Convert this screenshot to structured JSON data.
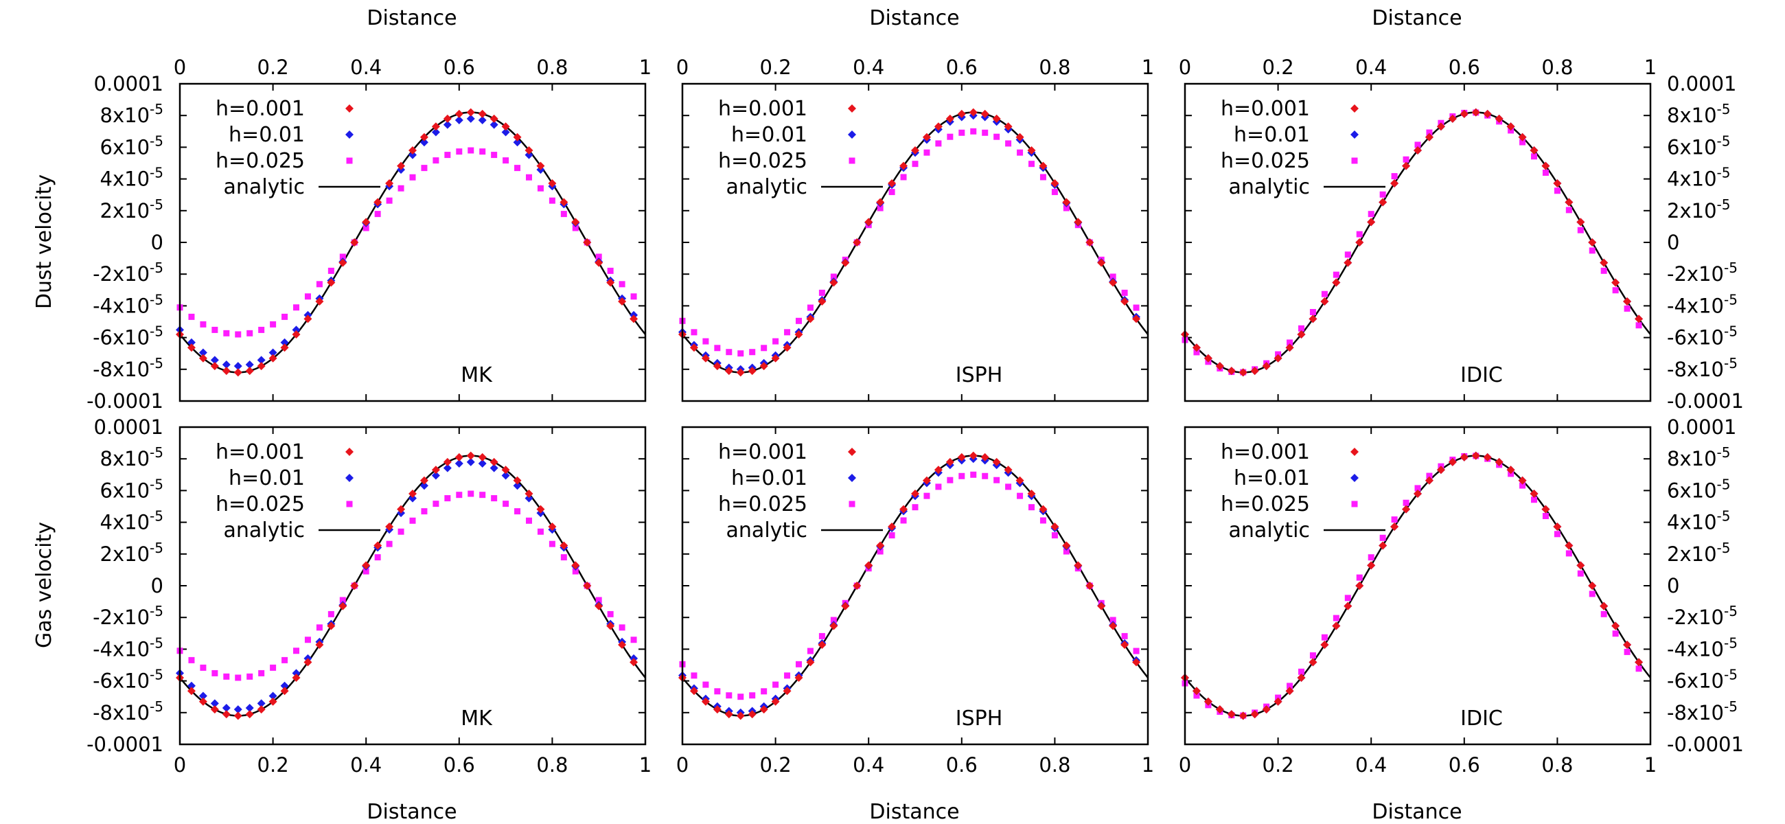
{
  "figure": {
    "top_axis_label": "Distance",
    "bottom_axis_label": "Distance",
    "row_labels": [
      "Dust velocity",
      "Gas velocity"
    ]
  },
  "legend": {
    "entries": [
      {
        "label": "h=0.001",
        "color": "#e8141c",
        "marker": "diamond"
      },
      {
        "label": "h=0.01",
        "color": "#1c1ce8",
        "marker": "diamond"
      },
      {
        "label": "h=0.025",
        "color": "#ff1cff",
        "marker": "square"
      },
      {
        "label": "analytic",
        "color": "#000000",
        "marker": "line"
      }
    ]
  },
  "chart_data": {
    "type": "scatter",
    "layout": "2 rows x 3 columns",
    "x_tick_labels": [
      "0",
      "0.2",
      "0.4",
      "0.6",
      "0.8",
      "1"
    ],
    "y_tick_labels": [
      {
        "base": "0.0001",
        "exp": ""
      },
      {
        "base": "8x10",
        "exp": "-5"
      },
      {
        "base": "6x10",
        "exp": "-5"
      },
      {
        "base": "4x10",
        "exp": "-5"
      },
      {
        "base": "2x10",
        "exp": "-5"
      },
      {
        "base": "0",
        "exp": ""
      },
      {
        "base": "-2x10",
        "exp": "-5"
      },
      {
        "base": "-4x10",
        "exp": "-5"
      },
      {
        "base": "-6x10",
        "exp": "-5"
      },
      {
        "base": "-8x10",
        "exp": "-5"
      },
      {
        "base": "-0.0001",
        "exp": ""
      }
    ],
    "xlim": [
      0,
      1
    ],
    "ylim": [
      -0.0001,
      0.0001
    ],
    "grid": false,
    "legend_position": "top-left",
    "analytic": {
      "amplitude": 8.2e-05,
      "phase_peak_x": 0.625,
      "period": 1.0
    },
    "x_sample_step": 0.025,
    "panels": [
      {
        "row": 0,
        "col": 0,
        "quantity": "Dust velocity",
        "method": "MK",
        "series": [
          {
            "name": "h=0.001",
            "amplitude": 8.2e-05,
            "phase_shift": 0.0
          },
          {
            "name": "h=0.01",
            "amplitude": 7.8e-05,
            "phase_shift": 0.0
          },
          {
            "name": "h=0.025",
            "amplitude": 5.8e-05,
            "phase_shift": 0.0
          },
          {
            "name": "analytic",
            "amplitude": 8.2e-05
          }
        ]
      },
      {
        "row": 0,
        "col": 1,
        "quantity": "Dust velocity",
        "method": "ISPH",
        "series": [
          {
            "name": "h=0.001",
            "amplitude": 8.2e-05,
            "phase_shift": 0.0
          },
          {
            "name": "h=0.01",
            "amplitude": 8e-05,
            "phase_shift": 0.0
          },
          {
            "name": "h=0.025",
            "amplitude": 7e-05,
            "phase_shift": 0.0
          },
          {
            "name": "analytic",
            "amplitude": 8.2e-05
          }
        ]
      },
      {
        "row": 0,
        "col": 2,
        "quantity": "Dust velocity",
        "method": "IDIC",
        "series": [
          {
            "name": "h=0.001",
            "amplitude": 8.2e-05,
            "phase_shift": 0.0
          },
          {
            "name": "h=0.01",
            "amplitude": 8.2e-05,
            "phase_shift": 0.0
          },
          {
            "name": "h=0.025",
            "amplitude": 8.2e-05,
            "phase_shift": -0.01
          },
          {
            "name": "analytic",
            "amplitude": 8.2e-05
          }
        ]
      },
      {
        "row": 1,
        "col": 0,
        "quantity": "Gas velocity",
        "method": "MK",
        "series": [
          {
            "name": "h=0.001",
            "amplitude": 8.2e-05,
            "phase_shift": 0.0
          },
          {
            "name": "h=0.01",
            "amplitude": 7.8e-05,
            "phase_shift": 0.0
          },
          {
            "name": "h=0.025",
            "amplitude": 5.8e-05,
            "phase_shift": 0.0
          },
          {
            "name": "analytic",
            "amplitude": 8.2e-05
          }
        ]
      },
      {
        "row": 1,
        "col": 1,
        "quantity": "Gas velocity",
        "method": "ISPH",
        "series": [
          {
            "name": "h=0.001",
            "amplitude": 8.2e-05,
            "phase_shift": 0.0
          },
          {
            "name": "h=0.01",
            "amplitude": 8e-05,
            "phase_shift": 0.0
          },
          {
            "name": "h=0.025",
            "amplitude": 7e-05,
            "phase_shift": 0.0
          },
          {
            "name": "analytic",
            "amplitude": 8.2e-05
          }
        ]
      },
      {
        "row": 1,
        "col": 2,
        "quantity": "Gas velocity",
        "method": "IDIC",
        "series": [
          {
            "name": "h=0.001",
            "amplitude": 8.2e-05,
            "phase_shift": 0.0
          },
          {
            "name": "h=0.01",
            "amplitude": 8.2e-05,
            "phase_shift": 0.0
          },
          {
            "name": "h=0.025",
            "amplitude": 8.2e-05,
            "phase_shift": -0.01
          },
          {
            "name": "analytic",
            "amplitude": 8.2e-05
          }
        ]
      }
    ]
  }
}
